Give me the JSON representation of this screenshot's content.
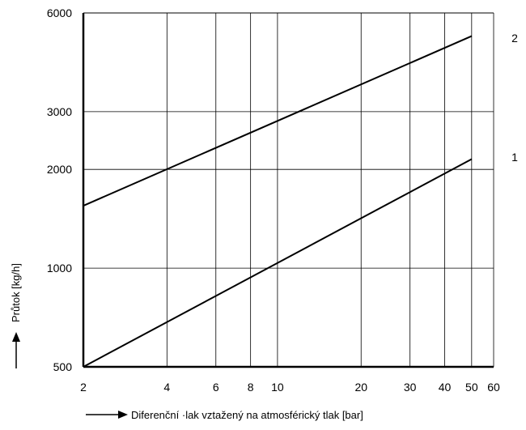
{
  "chart_data": {
    "type": "line",
    "x_scale": "log",
    "y_scale": "log",
    "xlim": [
      2,
      60
    ],
    "ylim": [
      500,
      6000
    ],
    "grid": true,
    "x_ticks": [
      2,
      4,
      6,
      8,
      10,
      20,
      30,
      40,
      50,
      60
    ],
    "x_tick_labels": [
      "2",
      "4",
      "6",
      "8",
      "10",
      "20",
      "30",
      "40",
      "50",
      "60"
    ],
    "y_ticks": [
      500,
      1000,
      2000,
      3000,
      6000
    ],
    "y_tick_labels": [
      "500",
      "1000",
      "2000",
      "3000",
      "6000"
    ],
    "xlabel": "Diferenční ·lak vztažený na atmosférický tlak [bar]",
    "ylabel": "Průtok [kg/h]",
    "series": [
      {
        "name": "2",
        "x": [
          2,
          50
        ],
        "y": [
          1550,
          5100
        ]
      },
      {
        "name": "1",
        "x": [
          2,
          50
        ],
        "y": [
          500,
          2150
        ]
      }
    ]
  }
}
